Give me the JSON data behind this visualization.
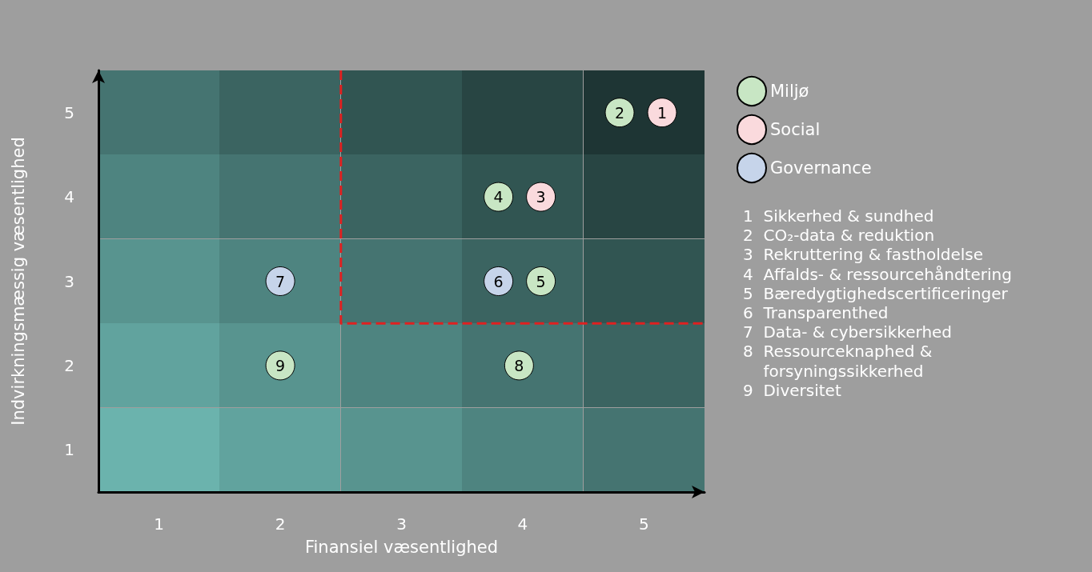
{
  "chart_data": {
    "type": "scatter",
    "xlabel": "Finansiel væsentlighed",
    "ylabel": "Indvirkningsmæssig væsentlighed",
    "xlim": [
      0.5,
      5.5
    ],
    "xticks": [
      1,
      2,
      3,
      4,
      5
    ],
    "ylim": [
      0.5,
      5.5
    ],
    "yticks": [
      1,
      2,
      3,
      4,
      5
    ],
    "grid": false,
    "legend": "top right",
    "marker": "circle",
    "series": [
      {
        "name": "Miljø",
        "color": "#c8e6c4",
        "x": [
          4.8,
          3.8,
          4.15,
          3.97,
          2
        ],
        "values": [
          5,
          4,
          3,
          2,
          2
        ]
      },
      {
        "name": "Social",
        "color": "#fadadd",
        "x": [
          5.15,
          4.15
        ],
        "values": [
          5,
          4
        ]
      },
      {
        "name": "Governance",
        "color": "#c6d4ea",
        "x": [
          3.8,
          2
        ],
        "values": [
          3,
          3
        ]
      },
      {
        "type": "line",
        "color": "#e02020",
        "line_style": "dashed",
        "marker": "none",
        "x": [
          2.5,
          2.5,
          5.5
        ],
        "values": [
          5.5,
          2.5,
          2.5
        ]
      }
    ],
    "annotations": [
      "1  Sikkerhed & sundhed",
      "2  CO₂-data & reduktion",
      "3  Rekruttering & fastholdelse",
      "4  Affalds- & ressourcehåndtering",
      "5  Bæredygtighedscertificeringer",
      "6  Transparenthed",
      "7  Data- & cybersikkerhed",
      "8  Ressourceknaphed &\n    forsyningssikkerhed",
      "9  Diversitet",
      {
        "text": "1",
        "x": 5.15,
        "y": 5
      },
      {
        "text": "2",
        "x": 4.8,
        "y": 5
      },
      {
        "text": "3",
        "x": 4.15,
        "y": 4
      },
      {
        "text": "4",
        "x": 3.8,
        "y": 4
      },
      {
        "text": "5",
        "x": 4.15,
        "y": 3
      },
      {
        "text": "6",
        "x": 3.8,
        "y": 3
      },
      {
        "text": "7",
        "x": 2,
        "y": 3
      },
      {
        "text": "8",
        "x": 3.97,
        "y": 2
      },
      {
        "text": "9",
        "x": 2,
        "y": 2
      }
    ]
  }
}
